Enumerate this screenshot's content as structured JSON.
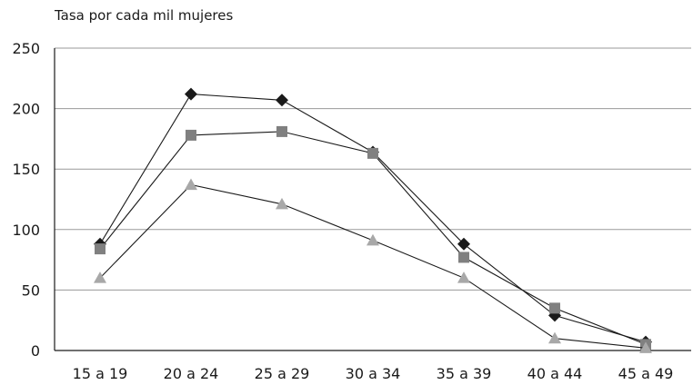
{
  "chart_data": {
    "type": "line",
    "title": "",
    "xlabel": "",
    "ylabel": "Tasa por cada mil mujeres",
    "categories": [
      "15 a 19",
      "20 a 24",
      "25 a 29",
      "30 a 34",
      "35 a 39",
      "40 a 44",
      "45 a 49"
    ],
    "ylim": [
      0,
      250
    ],
    "yticks": [
      0,
      50,
      100,
      150,
      200,
      250
    ],
    "grid": true,
    "legend": "none",
    "series": [
      {
        "marker": "diamond",
        "color": "#1a1a1a",
        "values": [
          88,
          212,
          207,
          164,
          88,
          29,
          7
        ]
      },
      {
        "marker": "square",
        "color": "#808080",
        "values": [
          84,
          178,
          181,
          163,
          77,
          35,
          5
        ]
      },
      {
        "marker": "triangle",
        "color": "#a8a8a8",
        "values": [
          60,
          137,
          121,
          91,
          60,
          10,
          2
        ]
      }
    ]
  }
}
